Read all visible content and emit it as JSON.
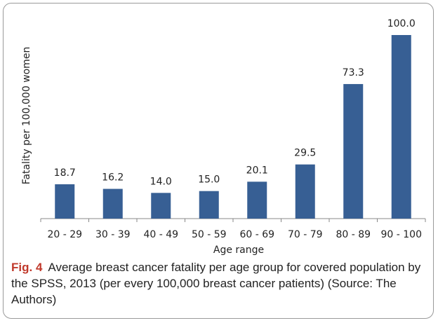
{
  "chart_data": {
    "type": "bar",
    "y_label": "Fatality per 100,000 women",
    "x_label": "Age range",
    "categories": [
      "20 - 29",
      "30 - 39",
      "40 - 49",
      "50 - 59",
      "60 - 69",
      "70 - 79",
      "80 - 89",
      "90 - 100"
    ],
    "values": [
      18.7,
      16.2,
      14.0,
      15.0,
      20.1,
      29.5,
      73.3,
      100.0
    ],
    "value_labels": [
      "18.7",
      "16.2",
      "14.0",
      "15.0",
      "20.1",
      "29.5",
      "73.3",
      "100.0"
    ],
    "color": "#375f94",
    "ylim": [
      0,
      100
    ]
  },
  "caption_label": "Fig. 4",
  "caption": "Average breast cancer fatality per age group for covered population by the SPSS, 2013 (per every 100,000 breast cancer patients) (Source: The Authors)"
}
